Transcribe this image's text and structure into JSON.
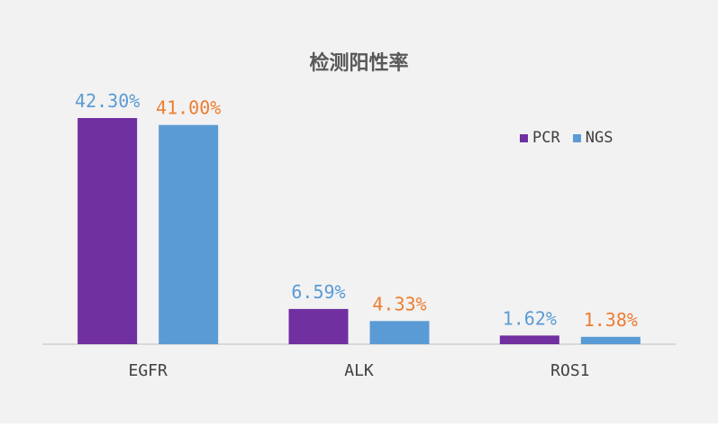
{
  "chart_data": {
    "type": "bar",
    "title": "检测阳性率",
    "categories": [
      "EGFR",
      "ALK",
      "ROS1"
    ],
    "series": [
      {
        "name": "PCR",
        "values": [
          42.3,
          6.59,
          1.62
        ],
        "labels": [
          "42.30%",
          "6.59%",
          "1.62%"
        ],
        "color": "#7030a0",
        "label_color": "#5b9bd5"
      },
      {
        "name": "NGS",
        "values": [
          41.0,
          4.33,
          1.38
        ],
        "labels": [
          "41.00%",
          "4.33%",
          "1.38%"
        ],
        "color": "#5b9bd5",
        "label_color": "#ed7d31"
      }
    ],
    "xlabel": "",
    "ylabel": "",
    "ylim": [
      0,
      42.3
    ],
    "grid": false,
    "legend_position": "top-right"
  }
}
